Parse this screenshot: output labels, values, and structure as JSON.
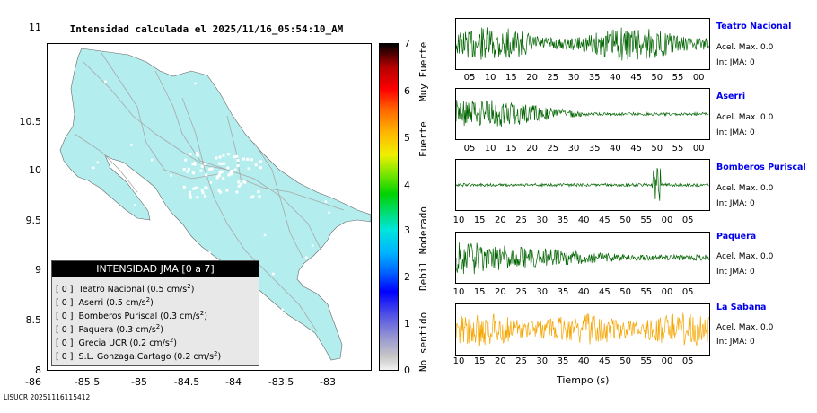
{
  "map": {
    "title": "Intensidad calculada el 2025/11/16_05:54:10_AM",
    "y_ticks": [
      "11",
      "10.5",
      "10",
      "9.5",
      "9",
      "8.5",
      "8"
    ],
    "x_ticks": [
      "-86",
      "-85.5",
      "-85",
      "-84.5",
      "-84",
      "-83.5",
      "-83"
    ],
    "land_color": "#b3eded"
  },
  "legend": {
    "title": "INTENSIDAD JMA [0 a 7]",
    "rows": [
      {
        "level": "[ 0 ]",
        "name": "Teatro Nacional (0.5 cm/s",
        "sup": "2",
        "close": ")"
      },
      {
        "level": "[ 0 ]",
        "name": "Aserri (0.5 cm/s",
        "sup": "2",
        "close": ")"
      },
      {
        "level": "[ 0 ]",
        "name": "Bomberos Puriscal (0.3 cm/s",
        "sup": "2",
        "close": ")"
      },
      {
        "level": "[ 0 ]",
        "name": "Paquera (0.3 cm/s",
        "sup": "2",
        "close": ")"
      },
      {
        "level": "[ 0 ]",
        "name": "Grecia UCR (0.2 cm/s",
        "sup": "2",
        "close": ")"
      },
      {
        "level": "[ 0 ]",
        "name": "S.L. Gonzaga.Cartago (0.2 cm/s",
        "sup": "2",
        "close": ")"
      }
    ]
  },
  "colorbar": {
    "numbers": [
      "7",
      "6",
      "5",
      "4",
      "3",
      "2",
      "1",
      "0"
    ],
    "labels": [
      "Muy Fuerte",
      "Fuerte",
      "Moderado",
      "Debil",
      "No sentido"
    ]
  },
  "stations": [
    {
      "name": "Teatro Nacional",
      "acel": "Acel. Max. 0.0",
      "jma": "Int JMA: 0",
      "ticks": [
        "05",
        "10",
        "15",
        "20",
        "25",
        "30",
        "35",
        "40",
        "45",
        "50",
        "55",
        "00"
      ],
      "color": "#006400"
    },
    {
      "name": "Aserri",
      "acel": "Acel. Max. 0.0",
      "jma": "Int JMA: 0",
      "ticks": [
        "05",
        "10",
        "15",
        "20",
        "25",
        "30",
        "35",
        "40",
        "45",
        "50",
        "55",
        "00"
      ],
      "color": "#006400"
    },
    {
      "name": "Bomberos Puriscal",
      "acel": "Acel. Max. 0.0",
      "jma": "Int JMA: 0",
      "ticks": [
        "10",
        "15",
        "20",
        "25",
        "30",
        "35",
        "40",
        "45",
        "50",
        "55",
        "00",
        "05"
      ],
      "color": "#006400"
    },
    {
      "name": "Paquera",
      "acel": "Acel. Max. 0.0",
      "jma": "Int JMA: 0",
      "ticks": [
        "10",
        "15",
        "20",
        "25",
        "30",
        "35",
        "40",
        "45",
        "50",
        "55",
        "00",
        "05"
      ],
      "color": "#006400"
    },
    {
      "name": "La Sabana",
      "acel": "Acel. Max. 0.0",
      "jma": "Int JMA: 0",
      "ticks": [
        "10",
        "15",
        "20",
        "25",
        "30",
        "35",
        "40",
        "45",
        "50",
        "55",
        "00",
        "05"
      ],
      "color": "#f5a500"
    }
  ],
  "xaxis_title": "Tiempo (s)",
  "footer": "LISUCR 20251116115412"
}
